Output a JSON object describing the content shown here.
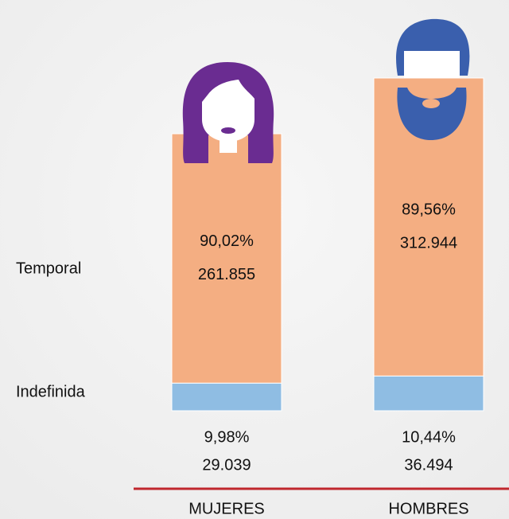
{
  "chart_data": {
    "type": "stacked_bar",
    "categories": [
      "MUJERES",
      "HOMBRES"
    ],
    "series": [
      {
        "name": "Indefinida",
        "color": "#8fbde3",
        "values": [
          29039,
          36494
        ],
        "value_labels": [
          "29.039",
          "36.494"
        ],
        "percentages": [
          9.98,
          10.44
        ],
        "percentage_labels": [
          "9,98%",
          "10,44%"
        ]
      },
      {
        "name": "Temporal",
        "color": "#f4ae82",
        "values": [
          261855,
          312944
        ],
        "value_labels": [
          "261.855",
          "312.944"
        ],
        "percentages": [
          90.02,
          89.56
        ],
        "percentage_labels": [
          "90,02%",
          "89,56%"
        ]
      }
    ]
  }
}
